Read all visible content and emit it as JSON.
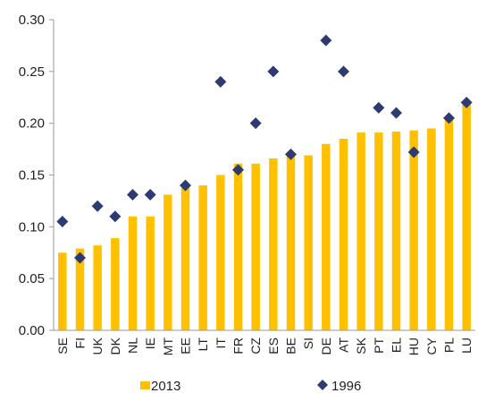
{
  "chart_data": {
    "type": "bar",
    "categories": [
      "SE",
      "FI",
      "UK",
      "DK",
      "NL",
      "IE",
      "MT",
      "EE",
      "LT",
      "IT",
      "FR",
      "CZ",
      "ES",
      "BE",
      "SI",
      "DE",
      "AT",
      "SK",
      "PT",
      "EL",
      "HU",
      "CY",
      "PL",
      "LU"
    ],
    "series": [
      {
        "name": "2013",
        "kind": "bar",
        "color": "#FFC000",
        "values": [
          0.075,
          0.079,
          0.082,
          0.089,
          0.11,
          0.11,
          0.131,
          0.138,
          0.14,
          0.15,
          0.161,
          0.161,
          0.166,
          0.17,
          0.169,
          0.18,
          0.185,
          0.191,
          0.191,
          0.192,
          0.193,
          0.195,
          0.205,
          0.22
        ]
      },
      {
        "name": "1996",
        "kind": "marker",
        "marker": "diamond",
        "color": "#2E3A73",
        "values": [
          0.105,
          0.07,
          0.12,
          0.11,
          0.131,
          0.131,
          null,
          0.14,
          null,
          0.24,
          0.155,
          0.2,
          0.25,
          0.17,
          null,
          0.28,
          0.25,
          null,
          0.215,
          0.21,
          0.172,
          null,
          0.205,
          0.22
        ]
      }
    ],
    "ylim": [
      0,
      0.3
    ],
    "yticks": [
      "0.00",
      "0.05",
      "0.10",
      "0.15",
      "0.20",
      "0.25",
      "0.30"
    ],
    "grid": false,
    "legend_position": "bottom"
  }
}
